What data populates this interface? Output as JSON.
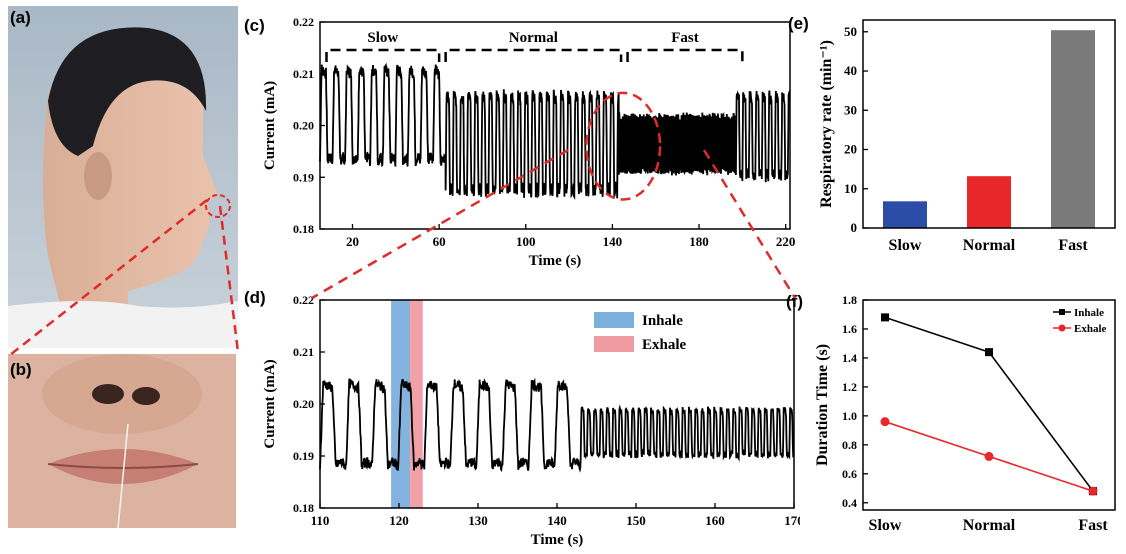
{
  "panels": {
    "a": "(a)",
    "b": "(b)",
    "c": "(c)",
    "d": "(d)",
    "e": "(e)",
    "f": "(f)"
  },
  "colors": {
    "slow_bar": "#2c4da7",
    "normal_bar": "#e8272a",
    "fast_bar": "#7a7a7a",
    "inhale": "#6da6d8",
    "exhale": "#ee8f97",
    "highlight": "#e02b2b",
    "inhale_line": "#000000",
    "exhale_line": "#e8272a"
  },
  "chart_data": [
    {
      "id": "c",
      "type": "line",
      "xlabel": "Time (s)",
      "ylabel": "Current (mA)",
      "xlim": [
        5,
        222
      ],
      "ylim": [
        0.18,
        0.22
      ],
      "xticks": [
        20,
        60,
        100,
        140,
        180,
        220
      ],
      "yticks": [
        0.18,
        0.19,
        0.2,
        0.21,
        0.22
      ],
      "phases": [
        {
          "label": "Slow",
          "x": [
            8,
            60
          ]
        },
        {
          "label": "Normal",
          "x": [
            63,
            144
          ]
        },
        {
          "label": "Fast",
          "x": [
            147,
            200
          ]
        }
      ],
      "segments": [
        {
          "x": [
            5,
            63
          ],
          "period": 5.8,
          "min": 0.193,
          "max": 0.211
        },
        {
          "x": [
            63,
            143
          ],
          "period": 3.3,
          "min": 0.187,
          "max": 0.206
        },
        {
          "x": [
            143,
            197
          ],
          "period": 0.8,
          "min": 0.191,
          "max": 0.202
        },
        {
          "x": [
            197,
            222
          ],
          "period": 3.0,
          "min": 0.19,
          "max": 0.206
        }
      ],
      "highlight": {
        "cx": 145,
        "cy": 0.196,
        "rx": 17,
        "ry": 0.0103
      }
    },
    {
      "id": "d",
      "type": "line",
      "xlabel": "Time (s)",
      "ylabel": "Current (mA)",
      "xlim": [
        110,
        170
      ],
      "ylim": [
        0.18,
        0.22
      ],
      "xticks": [
        110,
        120,
        130,
        140,
        150,
        160,
        170
      ],
      "yticks": [
        0.18,
        0.19,
        0.2,
        0.21,
        0.22
      ],
      "legend": [
        {
          "label": "Inhale",
          "color": "#6da6d8"
        },
        {
          "label": "Exhale",
          "color": "#ee8f97"
        }
      ],
      "spans": [
        {
          "name": "Inhale",
          "x": [
            119,
            121.4
          ]
        },
        {
          "name": "Exhale",
          "x": [
            121.4,
            123.0
          ]
        }
      ],
      "segments": [
        {
          "x": [
            110,
            143
          ],
          "period": 3.3,
          "min": 0.188,
          "max": 0.204
        },
        {
          "x": [
            143,
            170
          ],
          "period": 0.8,
          "min": 0.19,
          "max": 0.199
        }
      ]
    },
    {
      "id": "e",
      "type": "bar",
      "categories": [
        "Slow",
        "Normal",
        "Fast"
      ],
      "values": [
        6.8,
        13.2,
        50.4
      ],
      "ylabel": "Respiratory rate (min⁻¹)",
      "ylim": [
        0,
        53
      ],
      "yticks": [
        0,
        10,
        20,
        30,
        40,
        50
      ]
    },
    {
      "id": "f",
      "type": "line",
      "categories": [
        "Slow",
        "Normal",
        "Fast"
      ],
      "ylabel": "Duration Time (s)",
      "ylim": [
        0.35,
        1.8
      ],
      "yticks": [
        0.4,
        0.6,
        0.8,
        1.0,
        1.2,
        1.4,
        1.6,
        1.8
      ],
      "series": [
        {
          "name": "Inhale",
          "values": [
            1.68,
            1.44,
            0.48
          ]
        },
        {
          "name": "Exhale",
          "values": [
            0.96,
            0.72,
            0.48
          ]
        }
      ]
    }
  ]
}
